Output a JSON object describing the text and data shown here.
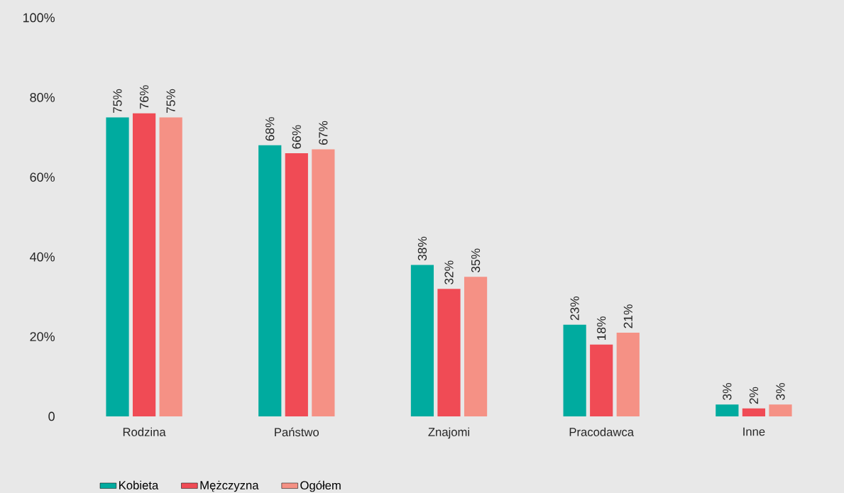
{
  "chart_data": {
    "type": "bar",
    "categories": [
      "Rodzina",
      "Państwo",
      "Znajomi",
      "Pracodawca",
      "Inne"
    ],
    "series": [
      {
        "name": "Kobieta",
        "color": "#00ab9f",
        "values": [
          75,
          68,
          38,
          23,
          3
        ],
        "value_labels": [
          "75%",
          "68%",
          "38%",
          "23%",
          "3%"
        ]
      },
      {
        "name": "Mężczyzna",
        "color": "#f04b55",
        "values": [
          76,
          66,
          32,
          18,
          2
        ],
        "value_labels": [
          "76%",
          "66%",
          "32%",
          "18%",
          "2%"
        ]
      },
      {
        "name": "Ogółem",
        "color": "#f59185",
        "values": [
          75,
          67,
          35,
          21,
          3
        ],
        "value_labels": [
          "75%",
          "67%",
          "35%",
          "21%",
          "3%"
        ]
      }
    ],
    "ylim": [
      0,
      100
    ],
    "yticks": [
      {
        "value": 0,
        "label": "0"
      },
      {
        "value": 20,
        "label": "20%"
      },
      {
        "value": 40,
        "label": "40%"
      },
      {
        "value": 60,
        "label": "60%"
      },
      {
        "value": 80,
        "label": "80%"
      },
      {
        "value": 100,
        "label": "100%"
      }
    ],
    "legend": "bottom left",
    "grid": false
  }
}
